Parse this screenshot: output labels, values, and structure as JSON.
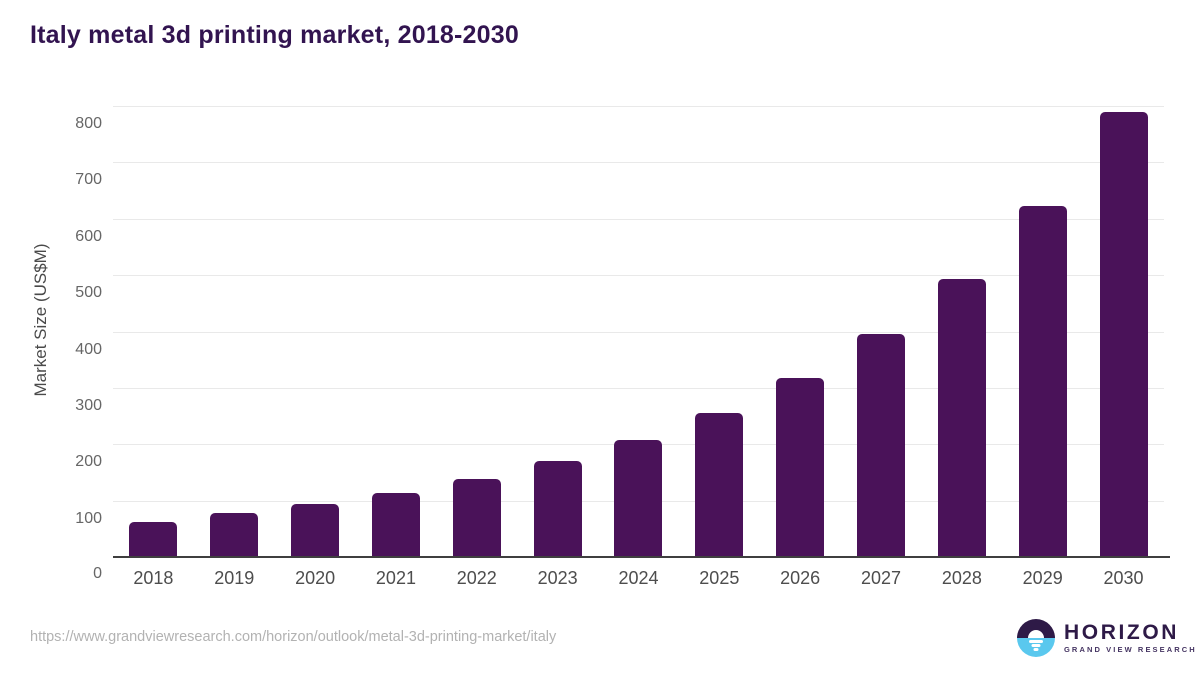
{
  "chart_data": {
    "type": "bar",
    "title": "Italy metal 3d printing market, 2018-2030",
    "categories": [
      "2018",
      "2019",
      "2020",
      "2021",
      "2022",
      "2023",
      "2024",
      "2025",
      "2026",
      "2027",
      "2028",
      "2029",
      "2030"
    ],
    "values": [
      64,
      79,
      95,
      116,
      140,
      172,
      209,
      257,
      319,
      397,
      495,
      624,
      792
    ],
    "xlabel": "",
    "ylabel": "Market Size (US$M)",
    "ylim": [
      0,
      800
    ],
    "ytick_step": 100,
    "grid": true,
    "legend_position": "none",
    "bar_color": "#4a1259"
  },
  "footer": {
    "source_url": "https://www.grandviewresearch.com/horizon/outlook/metal-3d-printing-market/italy",
    "logo": {
      "name": "HORIZON",
      "tagline": "GRAND VIEW RESEARCH"
    }
  },
  "colors": {
    "bar": "#4a1259",
    "title_text": "#321450",
    "axis_line": "#3f3f3f",
    "gridline": "#e9e9e9",
    "y_tick_text": "#666666",
    "x_tick_text": "#4d4d4d",
    "url_text": "#b2b2b2",
    "logo_purple": "#2e1a47",
    "logo_blue": "#5ac8ee"
  }
}
